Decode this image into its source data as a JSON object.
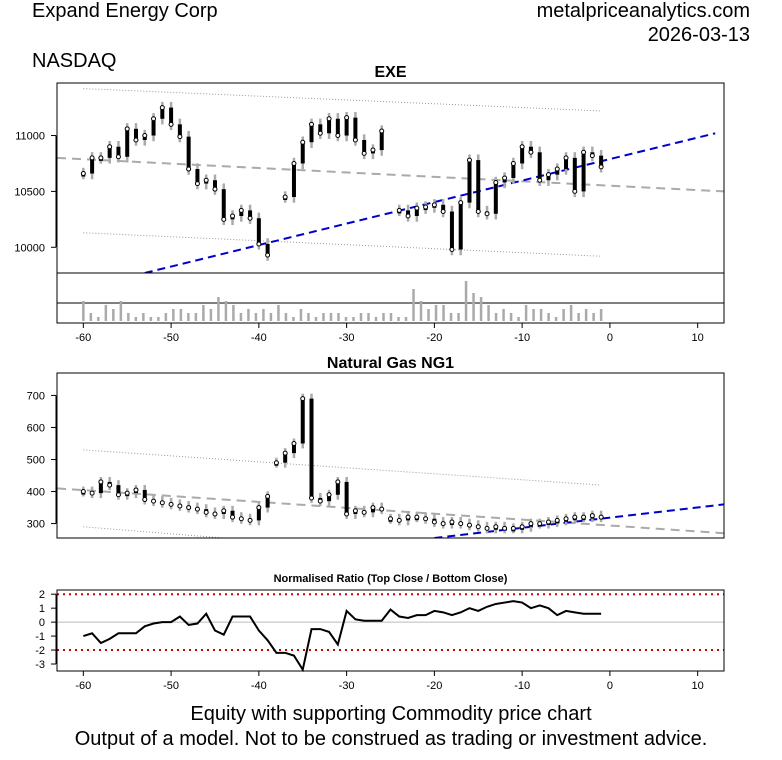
{
  "header": {
    "company": "Expand Energy Corp",
    "exchange": "NASDAQ",
    "site": "metalpriceanalytics.com",
    "date": "2026-03-13"
  },
  "footer": {
    "line1": "Equity with supporting Commodity price chart",
    "line2": "Output of a model. Not to be construed as trading or investment advice."
  },
  "chart_data": [
    {
      "type": "candlestick",
      "title": "EXE",
      "xlim": [
        -63,
        13
      ],
      "ylim": [
        9770,
        11470
      ],
      "x_ticks": [
        -60,
        -50,
        -40,
        -30,
        -20,
        -10,
        0,
        10
      ],
      "y_ticks": [
        10000,
        10500,
        11000
      ],
      "colors": {
        "candle": "#000000",
        "range": "#aaaaaa",
        "trend": "#0000cc",
        "band": "#aaaaaa"
      },
      "series": [
        {
          "x": [
            -60,
            -59,
            -58,
            -57,
            -56,
            -55,
            -54,
            -53,
            -52,
            -51,
            -50,
            -49,
            -48,
            -47,
            -46,
            -45,
            -44,
            -43,
            -42,
            -41,
            -40,
            -39
          ],
          "close": [
            10660,
            10800,
            10800,
            10900,
            10810,
            11060,
            10960,
            11000,
            11150,
            11250,
            11100,
            10990,
            10700,
            10570,
            10600,
            10520,
            10250,
            10280,
            10330,
            10260,
            10030,
            9930
          ]
        },
        {
          "x": [
            -37,
            -36,
            -35,
            -34,
            -33,
            -32,
            -31,
            -30,
            -29,
            -28,
            -27,
            -26
          ],
          "close": [
            10450,
            10750,
            10940,
            11100,
            11020,
            11150,
            11000,
            11160,
            10960,
            10840,
            10870,
            11040
          ]
        },
        {
          "x": [
            -24,
            -23,
            -22,
            -21,
            -20,
            -19,
            -18,
            -17,
            -16,
            -15,
            -14,
            -13,
            -12,
            -11,
            -10,
            -9,
            -8,
            -7,
            -6,
            -5,
            -4,
            -3,
            -2,
            -1
          ],
          "close": [
            10330,
            10280,
            10350,
            10360,
            10380,
            10320,
            9980,
            10400,
            10780,
            10320,
            10300,
            10580,
            10620,
            10750,
            10900,
            10850,
            10600,
            10650,
            10700,
            10800,
            10500,
            10850,
            10820,
            10720
          ]
        }
      ],
      "volume": [
        5,
        2,
        1,
        4,
        3,
        5,
        2,
        1,
        2,
        1,
        1,
        2,
        3,
        3,
        2,
        2,
        4,
        3,
        6,
        5,
        4,
        2,
        3,
        2,
        3,
        2,
        4,
        2,
        1,
        3,
        2,
        1,
        2,
        2,
        2,
        1,
        1,
        2,
        2,
        1,
        2,
        2,
        1,
        1,
        8,
        5,
        3,
        4,
        4,
        2,
        2,
        10,
        7,
        6,
        4,
        2,
        3,
        2,
        1,
        4,
        3,
        3,
        2,
        1,
        3,
        4,
        2,
        3,
        2,
        3
      ],
      "annotations": {
        "trend_line": [
          [
            -53,
            9770
          ],
          [
            12,
            11020
          ]
        ],
        "center_line": [
          [
            -63,
            10800
          ],
          [
            13,
            10500
          ]
        ],
        "upper_band": [
          [
            -60,
            11420
          ],
          [
            -1,
            11220
          ]
        ],
        "lower_band": [
          [
            -60,
            10130
          ],
          [
            -1,
            9920
          ]
        ]
      }
    },
    {
      "type": "candlestick",
      "title": "Natural Gas NG1",
      "xlim": [
        -63,
        13
      ],
      "ylim": [
        255,
        770
      ],
      "x_ticks": [
        -60,
        -50,
        -40,
        -30,
        -20,
        -10,
        0,
        10
      ],
      "y_ticks": [
        300,
        400,
        500,
        600,
        700
      ],
      "series": [
        {
          "x": [
            -60,
            -59,
            -58,
            -57,
            -56,
            -55,
            -54,
            -53,
            -52,
            -51,
            -50,
            -49,
            -48,
            -47,
            -46,
            -45,
            -44,
            -43,
            -42,
            -41,
            -40,
            -39
          ],
          "close": [
            400,
            395,
            430,
            420,
            390,
            395,
            405,
            375,
            370,
            365,
            360,
            355,
            350,
            345,
            335,
            330,
            340,
            320,
            315,
            310,
            350,
            385
          ]
        },
        {
          "x": [
            -38,
            -37,
            -36,
            -35,
            -34,
            -33,
            -32,
            -31,
            -30,
            -29,
            -28,
            -27,
            -26
          ],
          "close": [
            490,
            520,
            550,
            690,
            380,
            370,
            390,
            430,
            330,
            340,
            335,
            350,
            345
          ]
        },
        {
          "x": [
            -25,
            -24,
            -23,
            -22,
            -21,
            -20,
            -19,
            -18,
            -17,
            -16,
            -15,
            -14,
            -13,
            -12,
            -11,
            -10,
            -9,
            -8,
            -7,
            -6,
            -5,
            -4,
            -3,
            -2,
            -1
          ],
          "close": [
            315,
            310,
            320,
            320,
            315,
            305,
            300,
            305,
            300,
            295,
            290,
            285,
            290,
            285,
            285,
            290,
            300,
            300,
            305,
            310,
            315,
            320,
            320,
            325,
            320
          ]
        }
      ],
      "annotations": {
        "trend_line": [
          [
            -20,
            255
          ],
          [
            13,
            360
          ]
        ],
        "center_line": [
          [
            -63,
            410
          ],
          [
            13,
            270
          ]
        ],
        "upper_band": [
          [
            -60,
            530
          ],
          [
            -1,
            420
          ]
        ],
        "lower_band": [
          [
            -60,
            290
          ],
          [
            -44,
            255
          ]
        ]
      }
    },
    {
      "type": "line",
      "title": "Normalised Ratio (Top Close / Bottom Close)",
      "xlim": [
        -63,
        13
      ],
      "ylim": [
        -3.5,
        2.3
      ],
      "x_ticks": [
        -60,
        -50,
        -40,
        -30,
        -20,
        -10,
        0,
        10
      ],
      "y_ticks": [
        -3,
        -2,
        -1,
        0,
        1,
        2
      ],
      "reference_lines": [
        2,
        -2
      ],
      "x": [
        -60,
        -59,
        -58,
        -57,
        -56,
        -55,
        -54,
        -53,
        -52,
        -51,
        -50,
        -49,
        -48,
        -47,
        -46,
        -45,
        -44,
        -43,
        -42,
        -41,
        -40,
        -39,
        -38,
        -37,
        -36,
        -35,
        -34,
        -33,
        -32,
        -31,
        -30,
        -29,
        -28,
        -27,
        -26,
        -25,
        -24,
        -23,
        -22,
        -21,
        -20,
        -19,
        -18,
        -17,
        -16,
        -15,
        -14,
        -13,
        -12,
        -11,
        -10,
        -9,
        -8,
        -7,
        -6,
        -5,
        -4,
        -3,
        -2,
        -1
      ],
      "values": [
        -1.0,
        -0.8,
        -1.5,
        -1.2,
        -0.8,
        -0.8,
        -0.8,
        -0.3,
        -0.1,
        0.0,
        0.0,
        0.4,
        -0.2,
        -0.1,
        0.6,
        -0.6,
        -0.9,
        0.4,
        0.4,
        0.4,
        -0.6,
        -1.3,
        -2.2,
        -2.2,
        -2.4,
        -3.4,
        -0.5,
        -0.5,
        -0.7,
        -1.6,
        0.8,
        0.2,
        0.1,
        0.1,
        0.1,
        0.9,
        0.4,
        0.3,
        0.5,
        0.5,
        0.8,
        0.7,
        0.5,
        0.7,
        1.0,
        0.8,
        1.1,
        1.3,
        1.4,
        1.5,
        1.4,
        1.0,
        1.2,
        1.0,
        0.5,
        0.8,
        0.7,
        0.6,
        0.6,
        0.6
      ]
    }
  ]
}
